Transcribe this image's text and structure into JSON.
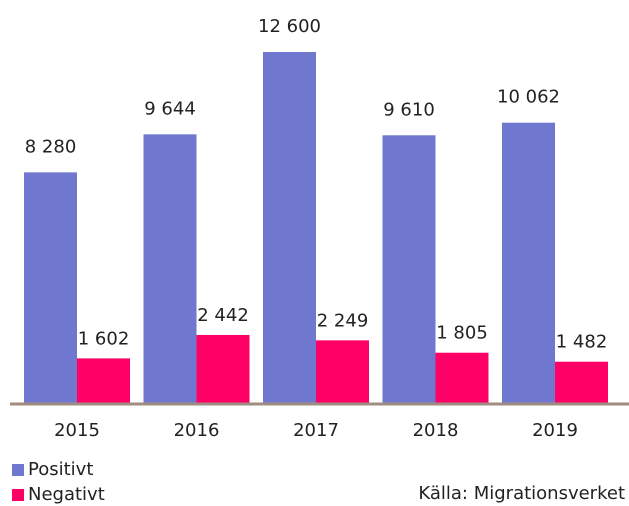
{
  "chart_data": {
    "type": "bar",
    "categories": [
      "2015",
      "2016",
      "2017",
      "2018",
      "2019"
    ],
    "series": [
      {
        "name": "Positivt",
        "color": "#7077cf",
        "values": [
          8280,
          9644,
          12600,
          9610,
          10062
        ],
        "value_labels": [
          "8 280",
          "9 644",
          "12 600",
          "9 610",
          "10 062"
        ]
      },
      {
        "name": "Negativt",
        "color": "#ff0066",
        "values": [
          1602,
          2442,
          2249,
          1805,
          1482
        ],
        "value_labels": [
          "1 602",
          "2 442",
          "2 249",
          "1 805",
          "1 482"
        ]
      }
    ],
    "ylim": [
      0,
      12600
    ],
    "source": "Källa: Migrationsverket",
    "legend": "bottom-left"
  }
}
